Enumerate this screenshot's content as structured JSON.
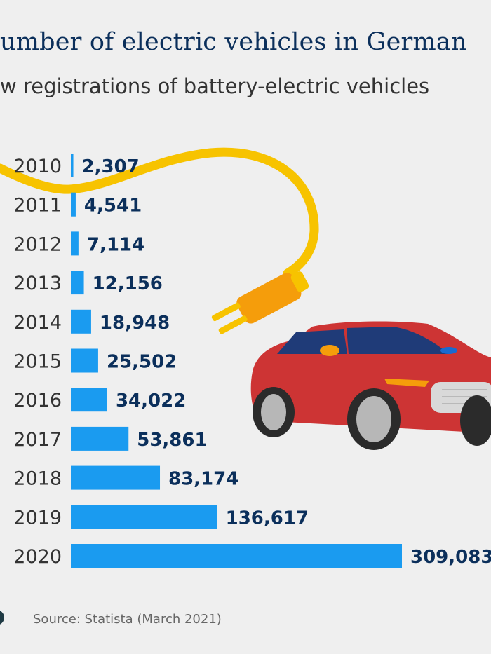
{
  "chart_data": {
    "type": "bar",
    "orientation": "horizontal",
    "title": "umber of electric vehicles in German",
    "subtitle": "w registrations of battery-electric vehicles",
    "categories": [
      "2010",
      "2011",
      "2012",
      "2013",
      "2014",
      "2015",
      "2016",
      "2017",
      "2018",
      "2019",
      "2020"
    ],
    "values": [
      2307,
      4541,
      7114,
      12156,
      18948,
      25502,
      34022,
      53861,
      83174,
      136617,
      309083
    ],
    "value_labels": [
      "2,307",
      "4,541",
      "7,114",
      "12,156",
      "18,948",
      "25,502",
      "34,022",
      "53,861",
      "83,174",
      "136,617",
      "309,083"
    ],
    "xlim": [
      0,
      309083
    ],
    "bar_color": "#1a9bf0",
    "label_color": "#0b2f5b"
  },
  "footer": {
    "source": "Source: Statista (March 2021)"
  },
  "colors": {
    "background": "#efefef",
    "cable": "#f7c300",
    "plug": "#f59d0b",
    "car_body": "#cd3434"
  }
}
